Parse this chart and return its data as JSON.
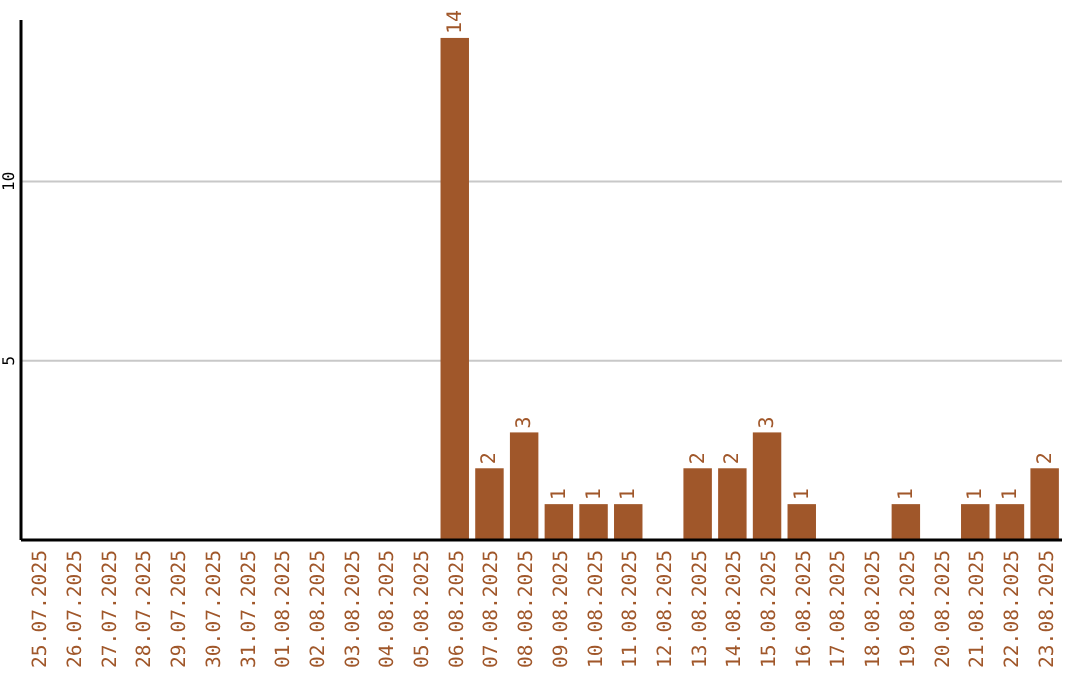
{
  "chart_data": {
    "type": "bar",
    "categories": [
      "25.07.2025",
      "26.07.2025",
      "27.07.2025",
      "28.07.2025",
      "29.07.2025",
      "30.07.2025",
      "31.07.2025",
      "01.08.2025",
      "02.08.2025",
      "03.08.2025",
      "04.08.2025",
      "05.08.2025",
      "06.08.2025",
      "07.08.2025",
      "08.08.2025",
      "09.08.2025",
      "10.08.2025",
      "11.08.2025",
      "12.08.2025",
      "13.08.2025",
      "14.08.2025",
      "15.08.2025",
      "16.08.2025",
      "17.08.2025",
      "18.08.2025",
      "19.08.2025",
      "20.08.2025",
      "21.08.2025",
      "22.08.2025",
      "23.08.2025"
    ],
    "values": [
      0,
      0,
      0,
      0,
      0,
      0,
      0,
      0,
      0,
      0,
      0,
      0,
      14,
      2,
      3,
      1,
      1,
      1,
      0,
      2,
      2,
      3,
      1,
      0,
      0,
      1,
      0,
      1,
      1,
      2
    ],
    "value_labels": [
      null,
      null,
      null,
      null,
      null,
      null,
      null,
      null,
      null,
      null,
      null,
      null,
      "14",
      "2",
      "3",
      "1",
      "1",
      "1",
      null,
      "2",
      "2",
      "3",
      "1",
      null,
      null,
      "1",
      null,
      "1",
      "1",
      "2"
    ],
    "color": "#a0572a",
    "ylim": [
      0,
      14.5
    ],
    "yticks": [
      5,
      10
    ],
    "grid": "y"
  }
}
